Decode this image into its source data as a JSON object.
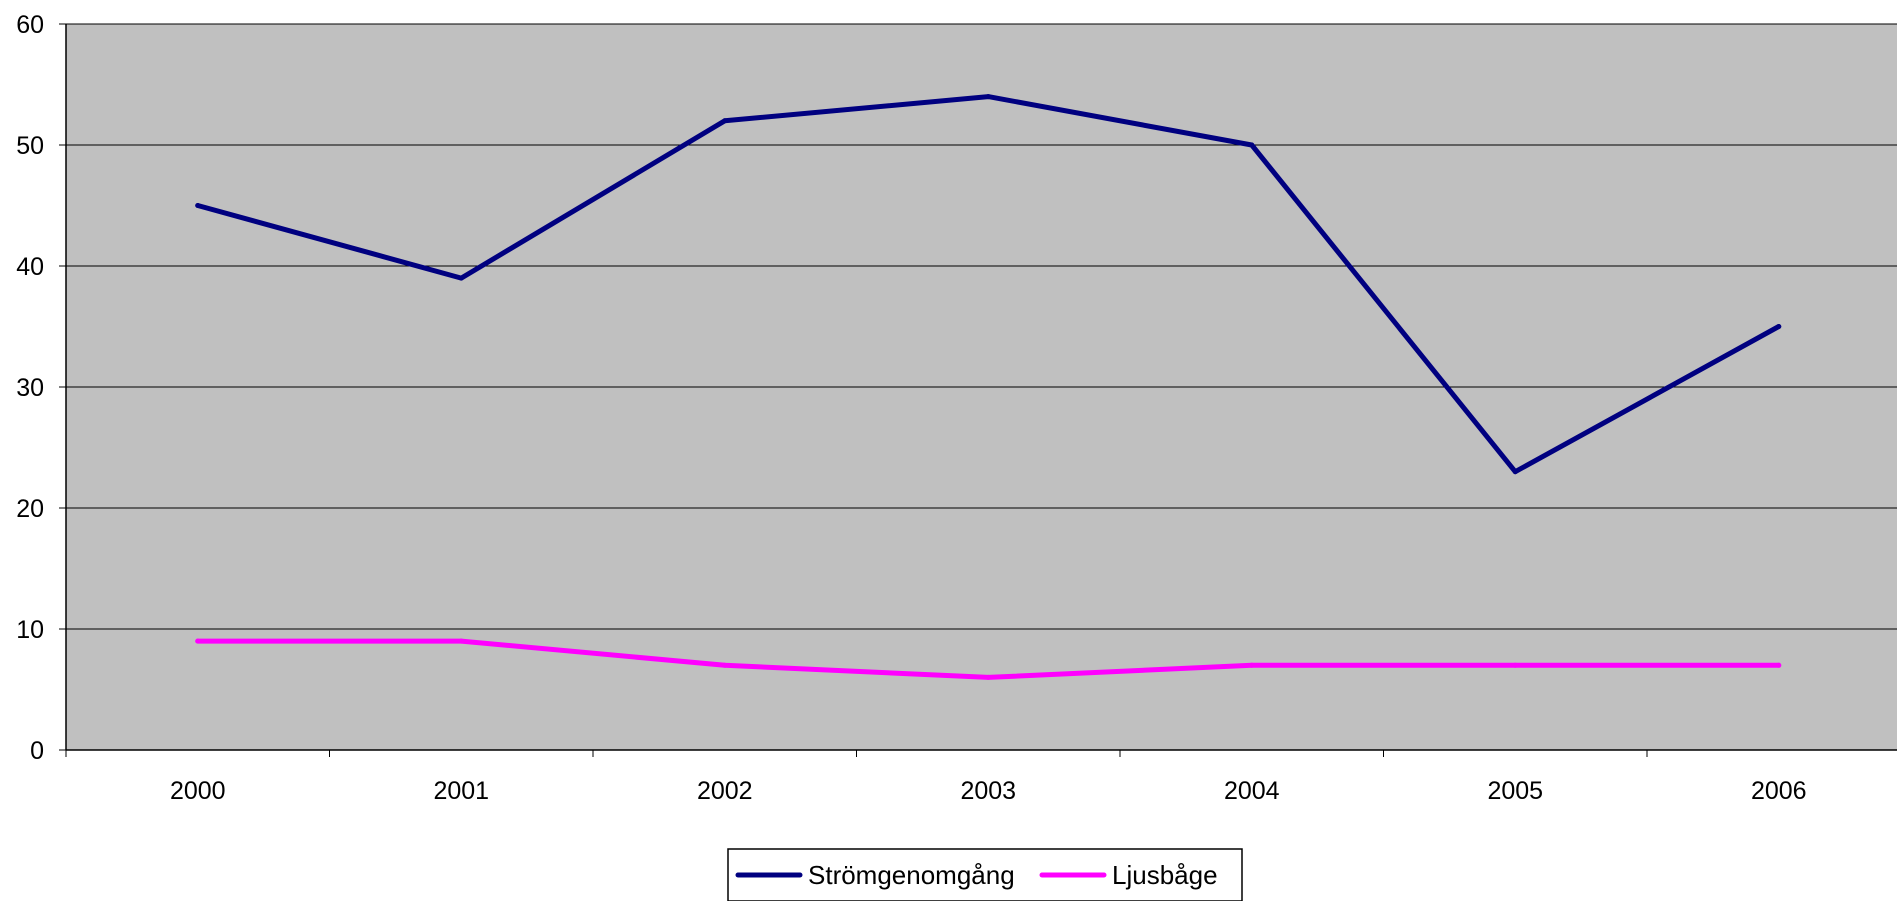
{
  "chart_data": {
    "type": "line",
    "title": "",
    "xlabel": "",
    "ylabel": "",
    "categories": [
      "2000",
      "2001",
      "2002",
      "2003",
      "2004",
      "2005",
      "2006"
    ],
    "ylim": [
      0,
      60
    ],
    "yticks": [
      0,
      10,
      20,
      30,
      40,
      50,
      60
    ],
    "grid": true,
    "legend_position": "bottom",
    "plot_background": "#c0c0c0",
    "series": [
      {
        "name": "Strömgenomgång",
        "color": "#000080",
        "values": [
          45,
          39,
          52,
          54,
          50,
          23,
          35
        ]
      },
      {
        "name": "Ljusbåge",
        "color": "#ff00ff",
        "values": [
          9,
          9,
          7,
          6,
          7,
          7,
          7
        ]
      }
    ]
  }
}
